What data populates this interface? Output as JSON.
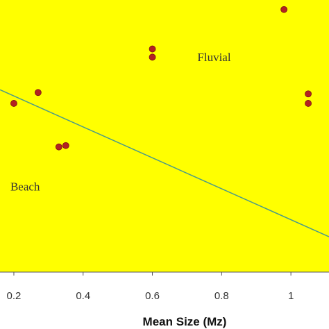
{
  "chart_data": {
    "type": "scatter",
    "title": "",
    "xlabel": "Mean Size (Mz)",
    "ylabel": "",
    "xlim": [
      0.16,
      1.11
    ],
    "ylim": [
      0,
      1
    ],
    "x_ticks": [
      "0.2",
      "0.4",
      "0.6",
      "0.8",
      "1"
    ],
    "x_tick_values": [
      0.2,
      0.4,
      0.6,
      0.8,
      1.0
    ],
    "grid": false,
    "background_color": "#ffff00",
    "point_color": "#b22222",
    "trendline_color": "#4a9a8a",
    "points": [
      {
        "x": 0.2,
        "y": 0.62
      },
      {
        "x": 0.27,
        "y": 0.66
      },
      {
        "x": 0.33,
        "y": 0.46
      },
      {
        "x": 0.35,
        "y": 0.465
      },
      {
        "x": 0.6,
        "y": 0.82
      },
      {
        "x": 0.6,
        "y": 0.79
      },
      {
        "x": 0.98,
        "y": 0.965
      },
      {
        "x": 1.05,
        "y": 0.655
      },
      {
        "x": 1.05,
        "y": 0.62
      }
    ],
    "trendline": {
      "x": [
        0.16,
        1.11
      ],
      "y": [
        0.67,
        0.13
      ]
    },
    "annotations": [
      {
        "text": "Fluvial",
        "x": 0.73,
        "y": 0.775
      },
      {
        "text": "Beach",
        "x": 0.19,
        "y": 0.3
      }
    ]
  }
}
